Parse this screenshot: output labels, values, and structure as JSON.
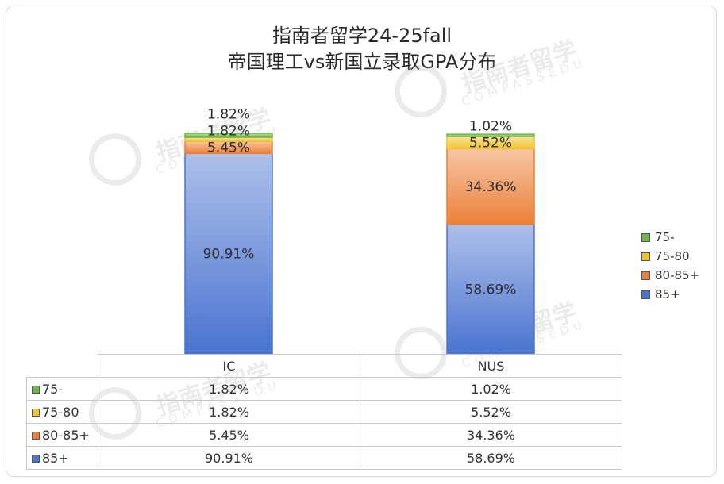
{
  "chart_data": {
    "type": "bar",
    "stacked": true,
    "percent_stacked": true,
    "title_lines": [
      "指南者留学24-25fall",
      "帝国理工vs新国立录取GPA分布"
    ],
    "categories": [
      "IC",
      "NUS"
    ],
    "series": [
      {
        "name": "85+",
        "values": [
          90.91,
          58.69
        ],
        "labels": [
          "90.91%",
          "58.69%"
        ],
        "color": "#4a74d0"
      },
      {
        "name": "80-85+",
        "values": [
          5.45,
          34.36
        ],
        "labels": [
          "5.45%",
          "34.36%"
        ],
        "color": "#ec8038"
      },
      {
        "name": "75-80",
        "values": [
          1.82,
          5.52
        ],
        "labels": [
          "1.82%",
          "5.52%"
        ],
        "color": "#f2c42c"
      },
      {
        "name": "75-",
        "values": [
          1.82,
          1.02
        ],
        "labels": [
          "1.82%",
          "1.02%"
        ],
        "color": "#6fb84a"
      }
    ],
    "ylim": [
      0,
      100
    ],
    "legend_position": "right",
    "legend_order": [
      "75-",
      "75-80",
      "80-85+",
      "85+"
    ],
    "grid": false,
    "data_table": {
      "columns": [
        "IC",
        "NUS"
      ],
      "rows": [
        {
          "label": "75-",
          "color": "#6fb84a",
          "values": [
            "1.82%",
            "1.02%"
          ]
        },
        {
          "label": "75-80",
          "color": "#f2c42c",
          "values": [
            "1.82%",
            "5.52%"
          ]
        },
        {
          "label": "80-85+",
          "color": "#ec8038",
          "values": [
            "5.45%",
            "34.36%"
          ]
        },
        {
          "label": "85+",
          "color": "#4a74d0",
          "values": [
            "90.91%",
            "58.69%"
          ]
        }
      ]
    }
  },
  "watermark": {
    "brand": "指南者留学",
    "sub": "COMPASSEDU"
  }
}
